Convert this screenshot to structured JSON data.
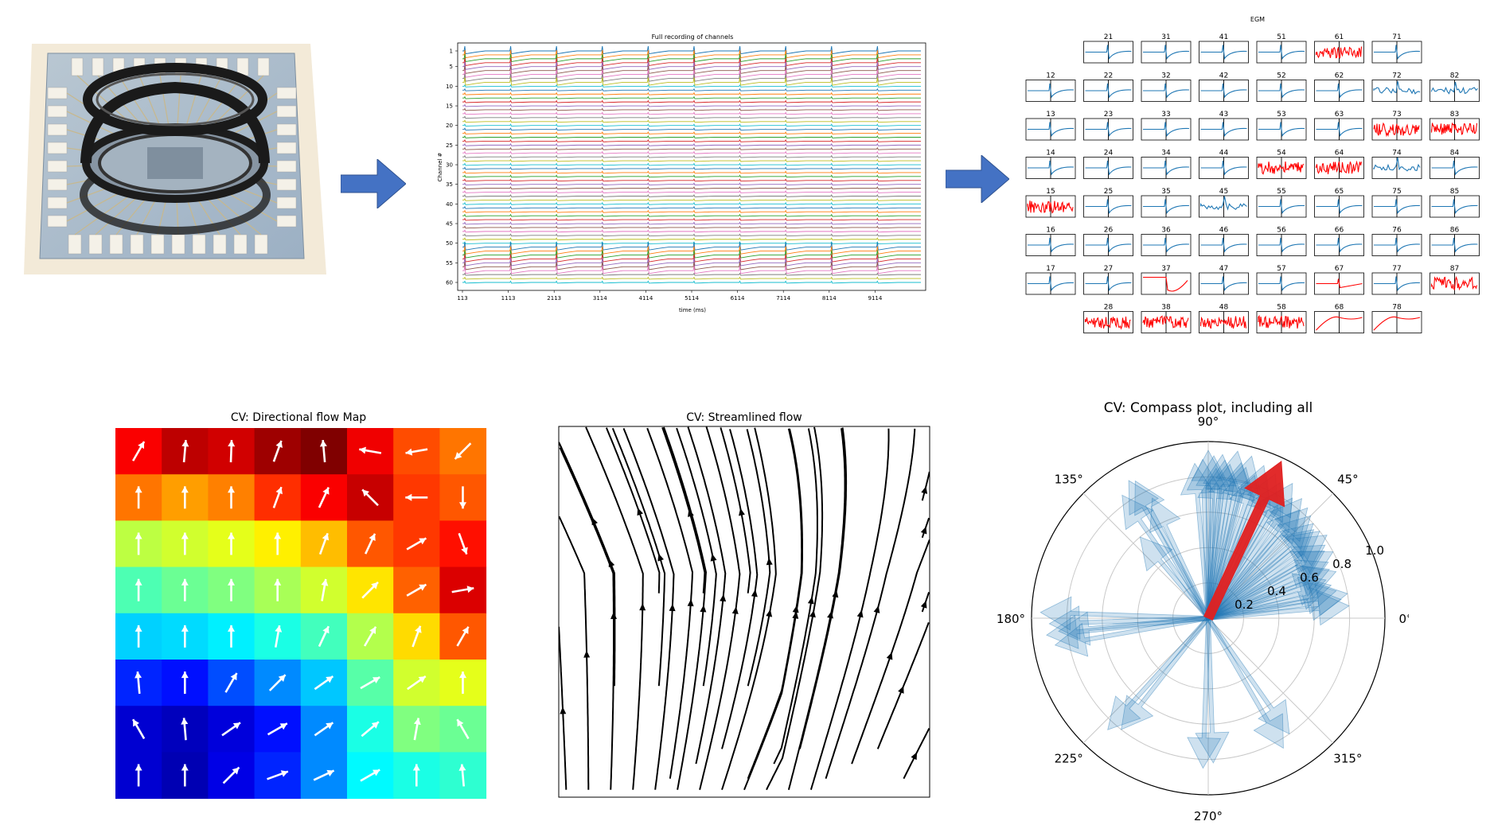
{
  "recording": {
    "title": "Full recording of channels",
    "ylabel": "Channel #",
    "xlabel": "time (ms)",
    "yticks": [
      "1",
      "5",
      "10",
      "15",
      "20",
      "25",
      "30",
      "35",
      "40",
      "45",
      "50",
      "55",
      "60"
    ],
    "xticks": [
      "113",
      "1113",
      "2113",
      "3114",
      "4114",
      "5114",
      "6114",
      "7114",
      "8114",
      "9114"
    ],
    "colors": [
      "#1f77b4",
      "#ff7f0e",
      "#2ca02c",
      "#d62728",
      "#9467bd",
      "#8c564b",
      "#e377c2",
      "#7f7f7f",
      "#bcbd22",
      "#17becf"
    ]
  },
  "egm": {
    "title": "EGM",
    "rows": [
      [
        {
          "c": "",
          "t": 0
        },
        {
          "c": "21",
          "t": 1
        },
        {
          "c": "31",
          "t": 1
        },
        {
          "c": "41",
          "t": 1
        },
        {
          "c": "51",
          "t": 1
        },
        {
          "c": "61",
          "t": 2
        },
        {
          "c": "71",
          "t": 1
        },
        {
          "c": "",
          "t": 0
        }
      ],
      [
        {
          "c": "12",
          "t": 1
        },
        {
          "c": "22",
          "t": 1
        },
        {
          "c": "32",
          "t": 1
        },
        {
          "c": "42",
          "t": 1
        },
        {
          "c": "52",
          "t": 1
        },
        {
          "c": "62",
          "t": 1
        },
        {
          "c": "72",
          "t": 3
        },
        {
          "c": "82",
          "t": 3
        }
      ],
      [
        {
          "c": "13",
          "t": 1
        },
        {
          "c": "23",
          "t": 1
        },
        {
          "c": "33",
          "t": 1
        },
        {
          "c": "43",
          "t": 1
        },
        {
          "c": "53",
          "t": 1
        },
        {
          "c": "63",
          "t": 1
        },
        {
          "c": "73",
          "t": 2
        },
        {
          "c": "83",
          "t": 2
        }
      ],
      [
        {
          "c": "14",
          "t": 1
        },
        {
          "c": "24",
          "t": 1
        },
        {
          "c": "34",
          "t": 1
        },
        {
          "c": "44",
          "t": 1
        },
        {
          "c": "54",
          "t": 2
        },
        {
          "c": "64",
          "t": 2
        },
        {
          "c": "74",
          "t": 3
        },
        {
          "c": "84",
          "t": 1
        }
      ],
      [
        {
          "c": "15",
          "t": 2
        },
        {
          "c": "25",
          "t": 1
        },
        {
          "c": "35",
          "t": 1
        },
        {
          "c": "45",
          "t": 3
        },
        {
          "c": "55",
          "t": 1
        },
        {
          "c": "65",
          "t": 1
        },
        {
          "c": "75",
          "t": 1
        },
        {
          "c": "85",
          "t": 1
        }
      ],
      [
        {
          "c": "16",
          "t": 1
        },
        {
          "c": "26",
          "t": 1
        },
        {
          "c": "36",
          "t": 1
        },
        {
          "c": "46",
          "t": 1
        },
        {
          "c": "56",
          "t": 1
        },
        {
          "c": "66",
          "t": 1
        },
        {
          "c": "76",
          "t": 1
        },
        {
          "c": "86",
          "t": 1
        }
      ],
      [
        {
          "c": "17",
          "t": 1
        },
        {
          "c": "27",
          "t": 1
        },
        {
          "c": "37",
          "t": 4
        },
        {
          "c": "47",
          "t": 1
        },
        {
          "c": "57",
          "t": 1
        },
        {
          "c": "67",
          "t": 5
        },
        {
          "c": "77",
          "t": 1
        },
        {
          "c": "87",
          "t": 2
        }
      ],
      [
        {
          "c": "",
          "t": 0
        },
        {
          "c": "28",
          "t": 2
        },
        {
          "c": "38",
          "t": 2
        },
        {
          "c": "48",
          "t": 2
        },
        {
          "c": "58",
          "t": 2
        },
        {
          "c": "68",
          "t": 6
        },
        {
          "c": "78",
          "t": 6
        },
        {
          "c": "",
          "t": 0
        }
      ]
    ],
    "colors": {
      "good": "#1f77b4",
      "bad": "#ff0000"
    }
  },
  "flow_map": {
    "title": "CV: Directional flow Map",
    "levels": [
      [
        0.88,
        0.94,
        0.92,
        0.97,
        1.0,
        0.89,
        0.8,
        0.76
      ],
      [
        0.76,
        0.72,
        0.75,
        0.83,
        0.88,
        0.93,
        0.82,
        0.79
      ],
      [
        0.56,
        0.58,
        0.6,
        0.64,
        0.69,
        0.79,
        0.82,
        0.86
      ],
      [
        0.45,
        0.48,
        0.5,
        0.54,
        0.58,
        0.65,
        0.78,
        0.91
      ],
      [
        0.33,
        0.34,
        0.36,
        0.4,
        0.44,
        0.55,
        0.66,
        0.79
      ],
      [
        0.16,
        0.14,
        0.2,
        0.26,
        0.32,
        0.46,
        0.58,
        0.6
      ],
      [
        0.08,
        0.06,
        0.09,
        0.14,
        0.26,
        0.4,
        0.5,
        0.48
      ],
      [
        0.08,
        0.05,
        0.1,
        0.16,
        0.26,
        0.37,
        0.4,
        0.42
      ]
    ],
    "angles": [
      [
        60,
        85,
        88,
        70,
        95,
        170,
        190,
        225
      ],
      [
        90,
        90,
        90,
        70,
        65,
        135,
        180,
        270
      ],
      [
        90,
        90,
        90,
        90,
        70,
        65,
        30,
        290
      ],
      [
        90,
        90,
        90,
        90,
        80,
        45,
        30,
        10
      ],
      [
        90,
        90,
        90,
        80,
        65,
        60,
        70,
        60
      ],
      [
        95,
        90,
        60,
        45,
        35,
        30,
        35,
        90
      ],
      [
        120,
        95,
        35,
        30,
        35,
        40,
        80,
        120
      ],
      [
        90,
        90,
        45,
        20,
        25,
        30,
        90,
        95
      ]
    ]
  },
  "streamlines": {
    "title": "CV: Streamlined flow"
  },
  "compass": {
    "title": "CV: Compass plot, including all",
    "angle_labels": [
      "0°",
      "45°",
      "90°",
      "135°",
      "180°",
      "225°",
      "270°",
      "315°"
    ],
    "radial_labels": [
      "0.2",
      "0.4",
      "0.6",
      "0.8",
      "1.0"
    ],
    "vectors": [
      [
        75,
        0.95
      ],
      [
        80,
        0.96
      ],
      [
        85,
        0.93
      ],
      [
        88,
        0.92
      ],
      [
        92,
        0.9
      ],
      [
        95,
        0.88
      ],
      [
        78,
        0.9
      ],
      [
        70,
        0.92
      ],
      [
        72,
        0.85
      ],
      [
        68,
        0.88
      ],
      [
        65,
        0.9
      ],
      [
        62,
        0.87
      ],
      [
        60,
        0.85
      ],
      [
        58,
        0.9
      ],
      [
        55,
        0.83
      ],
      [
        52,
        0.86
      ],
      [
        50,
        0.8
      ],
      [
        48,
        0.84
      ],
      [
        45,
        0.82
      ],
      [
        42,
        0.8
      ],
      [
        40,
        0.78
      ],
      [
        38,
        0.8
      ],
      [
        35,
        0.82
      ],
      [
        32,
        0.78
      ],
      [
        30,
        0.76
      ],
      [
        28,
        0.8
      ],
      [
        25,
        0.75
      ],
      [
        22,
        0.74
      ],
      [
        20,
        0.77
      ],
      [
        18,
        0.7
      ],
      [
        15,
        0.72
      ],
      [
        12,
        0.74
      ],
      [
        10,
        0.8
      ],
      [
        8,
        0.76
      ],
      [
        5,
        0.8
      ],
      [
        82,
        0.88
      ],
      [
        87,
        0.85
      ],
      [
        90,
        0.95
      ],
      [
        84,
        0.9
      ],
      [
        76,
        0.88
      ],
      [
        120,
        0.9
      ],
      [
        125,
        0.85
      ],
      [
        118,
        0.88
      ],
      [
        115,
        0.75
      ],
      [
        130,
        0.6
      ],
      [
        178,
        0.95
      ],
      [
        182,
        0.9
      ],
      [
        186,
        0.92
      ],
      [
        190,
        0.88
      ],
      [
        185,
        0.85
      ],
      [
        228,
        0.85
      ],
      [
        232,
        0.8
      ],
      [
        268,
        0.85
      ],
      [
        272,
        0.82
      ],
      [
        300,
        0.85
      ],
      [
        305,
        0.8
      ]
    ],
    "mean_vector": [
      65,
      0.98
    ],
    "colors": {
      "vectors": "#1f77b4",
      "mean": "#e02020"
    }
  }
}
